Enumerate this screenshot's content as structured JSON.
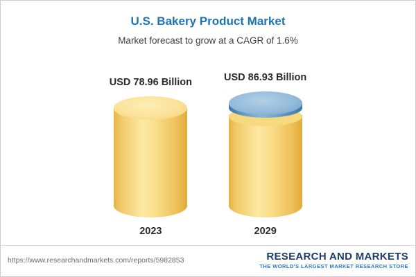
{
  "header": {
    "title": "U.S. Bakery Product Market",
    "subtitle": "Market forecast to grow at a CAGR of 1.6%"
  },
  "chart_data": {
    "type": "bar",
    "subtype": "cylinder-3d",
    "categories": [
      "2023",
      "2029"
    ],
    "values": [
      78.96,
      86.93
    ],
    "value_labels": [
      "USD 78.96 Billion",
      "USD 86.93 Billion"
    ],
    "unit": "USD Billion",
    "title": "U.S. Bakery Product Market",
    "subtitle": "Market forecast to grow at a CAGR of 1.6%",
    "cagr": "1.6%",
    "legend_position": "none",
    "grid": false,
    "bar_colors": {
      "base": "#f5d67a",
      "base_highlight": "#fde9a3",
      "growth_cap": "#5e93c0",
      "growth_cap_highlight": "#8db7d8"
    }
  },
  "footer": {
    "url": "https://www.researchandmarkets.com/reports/5982853",
    "logo_main": "RESEARCH AND MARKETS",
    "logo_tagline": "THE WORLD'S LARGEST MARKET RESEARCH STORE"
  }
}
